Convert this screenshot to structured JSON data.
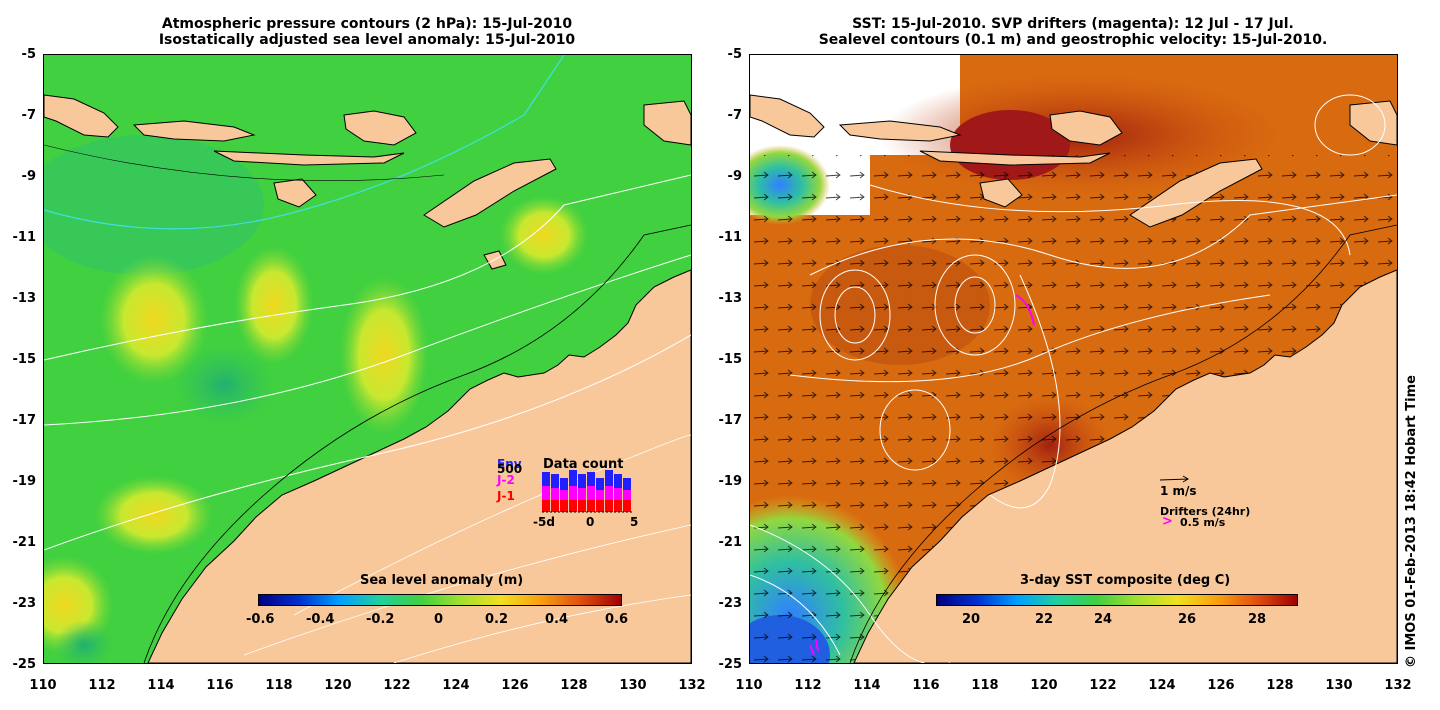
{
  "left": {
    "title_line1": "Atmospheric pressure contours (2 hPa): 15-Jul-2010",
    "title_line2": "Isostatically adjusted sea level anomaly: 15-Jul-2010",
    "colorbar_title": "Sea level anomaly (m)",
    "colorbar_ticks": [
      "-0.6",
      "-0.4",
      "-0.2",
      "0",
      "0.2",
      "0.4",
      "0.6"
    ],
    "inset": {
      "title": "Data count",
      "legend": [
        {
          "label": "Env",
          "color": "#2020ff"
        },
        {
          "label": "J-2",
          "color": "#ff00ff"
        },
        {
          "label": "J-1",
          "color": "#ff0000"
        }
      ],
      "max_label": "500",
      "xticks": [
        "-5d",
        "0",
        "5"
      ]
    }
  },
  "right": {
    "title_line1": "SST: 15-Jul-2010. SVP drifters (magenta): 12 Jul - 17 Jul.",
    "title_line2": "Sealevel contours (0.1 m) and geostrophic velocity: 15-Jul-2010.",
    "colorbar_title": "3-day SST composite (deg C)",
    "colorbar_ticks": [
      "20",
      "22",
      "24",
      "26",
      "28"
    ],
    "velocity_scale_label": "1 m/s",
    "drifters_label": "Drifters (24hr)",
    "drifters_speed_label": "0.5 m/s",
    "drifter_color": "#ff00ff"
  },
  "axes": {
    "yticks": [
      "-5",
      "-7",
      "-9",
      "-11",
      "-13",
      "-15",
      "-17",
      "-19",
      "-21",
      "-23",
      "-25"
    ],
    "xticks": [
      "110",
      "112",
      "114",
      "116",
      "118",
      "120",
      "122",
      "124",
      "126",
      "128",
      "130",
      "132"
    ],
    "lon_range": [
      110,
      132
    ],
    "lat_range": [
      -25,
      -5
    ]
  },
  "credit": "© IMOS 01-Feb-2013 18:42 Hobart Time",
  "colors": {
    "land": "#f8c89a",
    "sla_ocean": "#40d040",
    "sst_ocean": "#d86a10"
  }
}
